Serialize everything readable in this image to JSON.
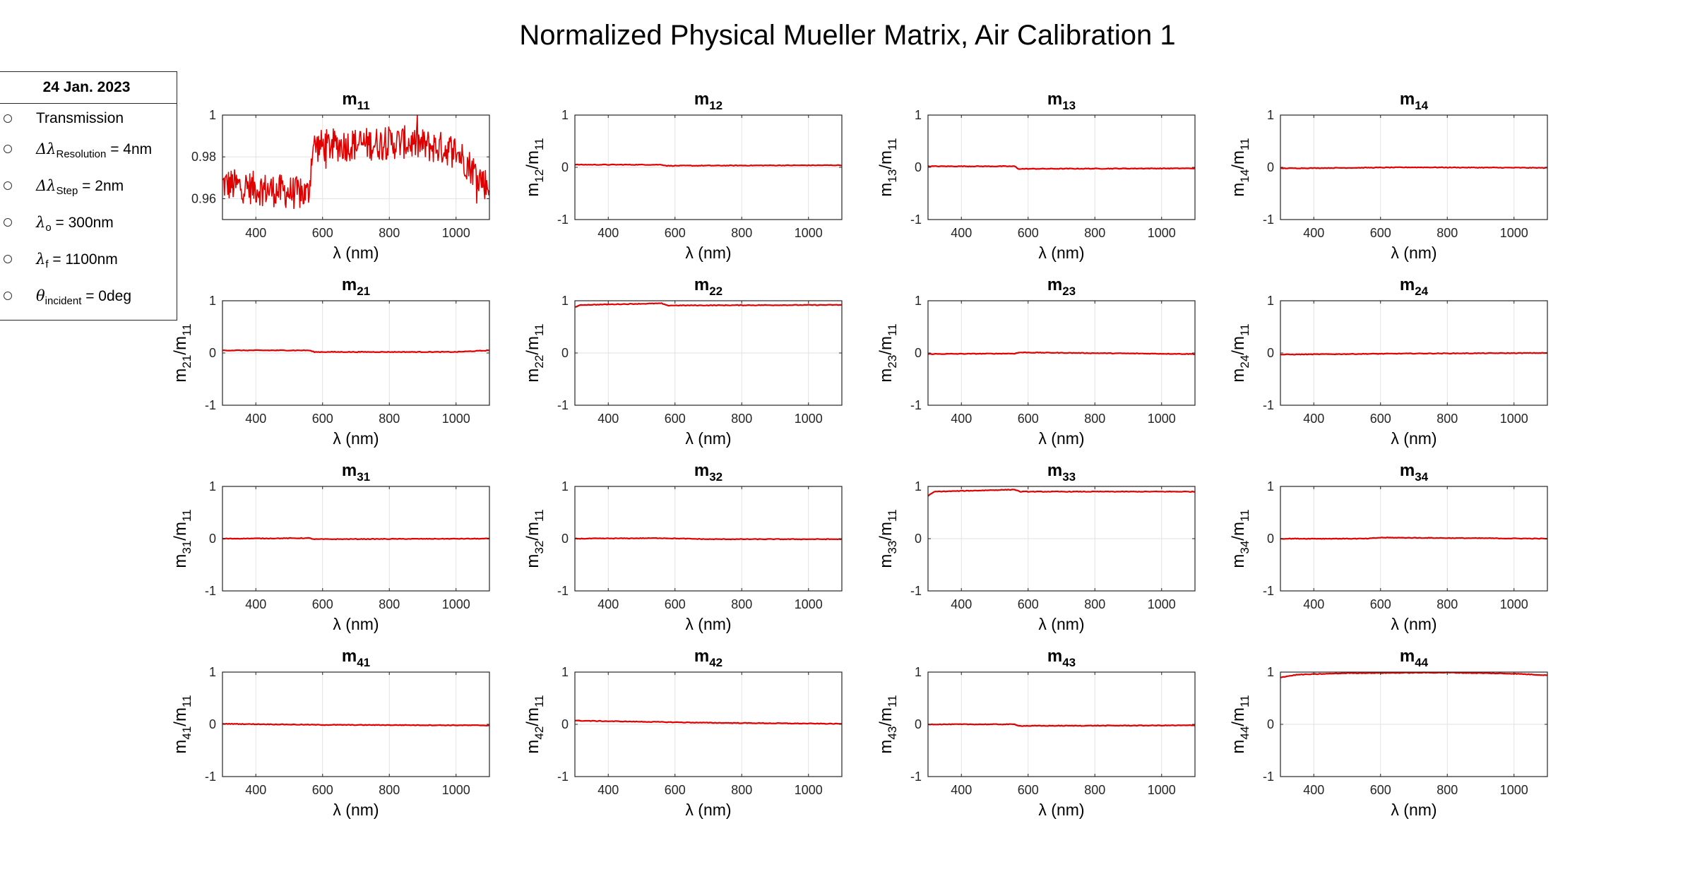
{
  "title": "Normalized Physical Mueller Matrix,  Air Calibration 1",
  "legend": {
    "title": "24 Jan. 2023",
    "items": [
      {
        "text": "Transmission"
      },
      {
        "pre": "Δλ",
        "sub": "Resolution",
        "post": " = 4nm"
      },
      {
        "pre": "Δλ",
        "sub": "Step",
        "post": " = 2nm"
      },
      {
        "pre": "λ",
        "sub": "o",
        "post": " = 300nm"
      },
      {
        "pre": "λ",
        "sub": "f",
        "post": " = 1100nm"
      },
      {
        "pre": "θ",
        "sub": "incident",
        "post": " = 0deg"
      }
    ]
  },
  "colors": {
    "series": "#e00000",
    "axis": "#262626",
    "grid": "#e2e2e2"
  },
  "chart_data": [
    {
      "type": "line",
      "id": "m11",
      "title": "m",
      "title_sub": "11",
      "xlabel": "λ (nm)",
      "ylabel": "",
      "xlim": [
        300,
        1100
      ],
      "ylim": [
        0.95,
        1.0
      ],
      "xticks": [
        400,
        600,
        800,
        1000
      ],
      "yticks": [
        0.96,
        0.98,
        1
      ],
      "ytick_labels": [
        "0.96",
        "0.98",
        "1"
      ],
      "grid": true,
      "series": [
        {
          "x_range": [
            300,
            1100
          ],
          "noise": "high",
          "segments": [
            [
              300,
              0.967
            ],
            [
              555,
              0.962
            ],
            [
              560,
              0.965
            ],
            [
              570,
              0.985
            ],
            [
              700,
              0.986
            ],
            [
              850,
              0.987
            ],
            [
              1000,
              0.983
            ],
            [
              1100,
              0.965
            ]
          ]
        }
      ]
    },
    {
      "type": "line",
      "id": "m12",
      "title": "m",
      "title_sub": "12",
      "xlabel": "λ (nm)",
      "ylabel": "m12/m11",
      "xlim": [
        300,
        1100
      ],
      "ylim": [
        -1,
        1
      ],
      "xticks": [
        400,
        600,
        800,
        1000
      ],
      "yticks": [
        -1,
        0,
        1
      ],
      "grid": true,
      "series": [
        {
          "x_range": [
            300,
            1100
          ],
          "segments": [
            [
              300,
              0.05
            ],
            [
              560,
              0.05
            ],
            [
              575,
              0.03
            ],
            [
              1100,
              0.04
            ]
          ]
        }
      ]
    },
    {
      "type": "line",
      "id": "m13",
      "title": "m",
      "title_sub": "13",
      "xlabel": "λ (nm)",
      "ylabel": "m13/m11",
      "xlim": [
        300,
        1100
      ],
      "ylim": [
        -1,
        1
      ],
      "xticks": [
        400,
        600,
        800,
        1000
      ],
      "yticks": [
        -1,
        0,
        1
      ],
      "grid": true,
      "series": [
        {
          "x_range": [
            300,
            1100
          ],
          "segments": [
            [
              300,
              0.02
            ],
            [
              560,
              0.02
            ],
            [
              570,
              -0.03
            ],
            [
              1100,
              -0.02
            ]
          ]
        }
      ]
    },
    {
      "type": "line",
      "id": "m14",
      "title": "m",
      "title_sub": "14",
      "xlabel": "λ (nm)",
      "ylabel": "m14/m11",
      "xlim": [
        300,
        1100
      ],
      "ylim": [
        -1,
        1
      ],
      "xticks": [
        400,
        600,
        800,
        1000
      ],
      "yticks": [
        -1,
        0,
        1
      ],
      "grid": true,
      "series": [
        {
          "x_range": [
            300,
            1100
          ],
          "segments": [
            [
              300,
              -0.02
            ],
            [
              700,
              0.0
            ],
            [
              1100,
              -0.01
            ]
          ]
        }
      ]
    },
    {
      "type": "line",
      "id": "m21",
      "title": "m",
      "title_sub": "21",
      "xlabel": "λ (nm)",
      "ylabel": "m21/m11",
      "xlim": [
        300,
        1100
      ],
      "ylim": [
        -1,
        1
      ],
      "xticks": [
        400,
        600,
        800,
        1000
      ],
      "yticks": [
        -1,
        0,
        1
      ],
      "grid": true,
      "series": [
        {
          "x_range": [
            300,
            1100
          ],
          "segments": [
            [
              300,
              0.05
            ],
            [
              560,
              0.05
            ],
            [
              575,
              0.02
            ],
            [
              1000,
              0.02
            ],
            [
              1100,
              0.05
            ]
          ]
        }
      ]
    },
    {
      "type": "line",
      "id": "m22",
      "title": "m",
      "title_sub": "22",
      "xlabel": "λ (nm)",
      "ylabel": "m22/m11",
      "xlim": [
        300,
        1100
      ],
      "ylim": [
        -1,
        1
      ],
      "xticks": [
        400,
        600,
        800,
        1000
      ],
      "yticks": [
        -1,
        0,
        1
      ],
      "grid": true,
      "series": [
        {
          "x_range": [
            300,
            1100
          ],
          "segments": [
            [
              300,
              0.88
            ],
            [
              320,
              0.92
            ],
            [
              560,
              0.95
            ],
            [
              575,
              0.91
            ],
            [
              1100,
              0.92
            ]
          ]
        }
      ]
    },
    {
      "type": "line",
      "id": "m23",
      "title": "m",
      "title_sub": "23",
      "xlabel": "λ (nm)",
      "ylabel": "m23/m11",
      "xlim": [
        300,
        1100
      ],
      "ylim": [
        -1,
        1
      ],
      "xticks": [
        400,
        600,
        800,
        1000
      ],
      "yticks": [
        -1,
        0,
        1
      ],
      "grid": true,
      "series": [
        {
          "x_range": [
            300,
            1100
          ],
          "segments": [
            [
              300,
              -0.02
            ],
            [
              560,
              -0.01
            ],
            [
              575,
              0.01
            ],
            [
              1100,
              -0.02
            ]
          ]
        }
      ]
    },
    {
      "type": "line",
      "id": "m24",
      "title": "m",
      "title_sub": "24",
      "xlabel": "λ (nm)",
      "ylabel": "m24/m11",
      "xlim": [
        300,
        1100
      ],
      "ylim": [
        -1,
        1
      ],
      "xticks": [
        400,
        600,
        800,
        1000
      ],
      "yticks": [
        -1,
        0,
        1
      ],
      "grid": true,
      "series": [
        {
          "x_range": [
            300,
            1100
          ],
          "segments": [
            [
              300,
              -0.03
            ],
            [
              700,
              -0.01
            ],
            [
              1100,
              0.0
            ]
          ]
        }
      ]
    },
    {
      "type": "line",
      "id": "m31",
      "title": "m",
      "title_sub": "31",
      "xlabel": "λ (nm)",
      "ylabel": "m31/m11",
      "xlim": [
        300,
        1100
      ],
      "ylim": [
        -1,
        1
      ],
      "xticks": [
        400,
        600,
        800,
        1000
      ],
      "yticks": [
        -1,
        0,
        1
      ],
      "grid": true,
      "series": [
        {
          "x_range": [
            300,
            1100
          ],
          "segments": [
            [
              300,
              0.0
            ],
            [
              560,
              0.01
            ],
            [
              575,
              -0.01
            ],
            [
              1100,
              0.0
            ]
          ]
        }
      ]
    },
    {
      "type": "line",
      "id": "m32",
      "title": "m",
      "title_sub": "32",
      "xlabel": "λ (nm)",
      "ylabel": "m32/m11",
      "xlim": [
        300,
        1100
      ],
      "ylim": [
        -1,
        1
      ],
      "xticks": [
        400,
        600,
        800,
        1000
      ],
      "yticks": [
        -1,
        0,
        1
      ],
      "grid": true,
      "series": [
        {
          "x_range": [
            300,
            1100
          ],
          "segments": [
            [
              300,
              0.0
            ],
            [
              560,
              0.01
            ],
            [
              700,
              -0.01
            ],
            [
              1100,
              -0.01
            ]
          ]
        }
      ]
    },
    {
      "type": "line",
      "id": "m33",
      "title": "m",
      "title_sub": "33",
      "xlabel": "λ (nm)",
      "ylabel": "m33/m11",
      "xlim": [
        300,
        1100
      ],
      "ylim": [
        -1,
        1
      ],
      "xticks": [
        400,
        600,
        800,
        1000
      ],
      "yticks": [
        -1,
        0,
        1
      ],
      "grid": true,
      "series": [
        {
          "x_range": [
            300,
            1100
          ],
          "segments": [
            [
              300,
              0.82
            ],
            [
              320,
              0.9
            ],
            [
              560,
              0.94
            ],
            [
              575,
              0.9
            ],
            [
              1100,
              0.9
            ]
          ]
        }
      ]
    },
    {
      "type": "line",
      "id": "m34",
      "title": "m",
      "title_sub": "34",
      "xlabel": "λ (nm)",
      "ylabel": "m34/m11",
      "xlim": [
        300,
        1100
      ],
      "ylim": [
        -1,
        1
      ],
      "xticks": [
        400,
        600,
        800,
        1000
      ],
      "yticks": [
        -1,
        0,
        1
      ],
      "grid": true,
      "series": [
        {
          "x_range": [
            300,
            1100
          ],
          "segments": [
            [
              300,
              0.0
            ],
            [
              560,
              0.0
            ],
            [
              600,
              0.02
            ],
            [
              1100,
              0.0
            ]
          ]
        }
      ]
    },
    {
      "type": "line",
      "id": "m41",
      "title": "m",
      "title_sub": "41",
      "xlabel": "λ (nm)",
      "ylabel": "m41/m11",
      "xlim": [
        300,
        1100
      ],
      "ylim": [
        -1,
        1
      ],
      "xticks": [
        400,
        600,
        800,
        1000
      ],
      "yticks": [
        -1,
        0,
        1
      ],
      "grid": true,
      "series": [
        {
          "x_range": [
            300,
            1100
          ],
          "segments": [
            [
              300,
              0.01
            ],
            [
              600,
              -0.01
            ],
            [
              1100,
              -0.02
            ]
          ]
        }
      ]
    },
    {
      "type": "line",
      "id": "m42",
      "title": "m",
      "title_sub": "42",
      "xlabel": "λ (nm)",
      "ylabel": "m42/m11",
      "xlim": [
        300,
        1100
      ],
      "ylim": [
        -1,
        1
      ],
      "xticks": [
        400,
        600,
        800,
        1000
      ],
      "yticks": [
        -1,
        0,
        1
      ],
      "grid": true,
      "series": [
        {
          "x_range": [
            300,
            1100
          ],
          "segments": [
            [
              300,
              0.07
            ],
            [
              700,
              0.03
            ],
            [
              1100,
              0.01
            ]
          ]
        }
      ]
    },
    {
      "type": "line",
      "id": "m43",
      "title": "m",
      "title_sub": "43",
      "xlabel": "λ (nm)",
      "ylabel": "m43/m11",
      "xlim": [
        300,
        1100
      ],
      "ylim": [
        -1,
        1
      ],
      "xticks": [
        400,
        600,
        800,
        1000
      ],
      "yticks": [
        -1,
        0,
        1
      ],
      "grid": true,
      "series": [
        {
          "x_range": [
            300,
            1100
          ],
          "segments": [
            [
              300,
              0.0
            ],
            [
              560,
              0.0
            ],
            [
              575,
              -0.03
            ],
            [
              1100,
              -0.02
            ]
          ]
        }
      ]
    },
    {
      "type": "line",
      "id": "m44",
      "title": "m",
      "title_sub": "44",
      "xlabel": "λ (nm)",
      "ylabel": "m44/m11",
      "xlim": [
        300,
        1100
      ],
      "ylim": [
        -1,
        1
      ],
      "xticks": [
        400,
        600,
        800,
        1000
      ],
      "yticks": [
        -1,
        0,
        1
      ],
      "grid": true,
      "series": [
        {
          "x_range": [
            300,
            1100
          ],
          "segments": [
            [
              300,
              0.9
            ],
            [
              350,
              0.95
            ],
            [
              500,
              0.98
            ],
            [
              800,
              0.99
            ],
            [
              1000,
              0.97
            ],
            [
              1100,
              0.94
            ]
          ]
        }
      ]
    }
  ]
}
